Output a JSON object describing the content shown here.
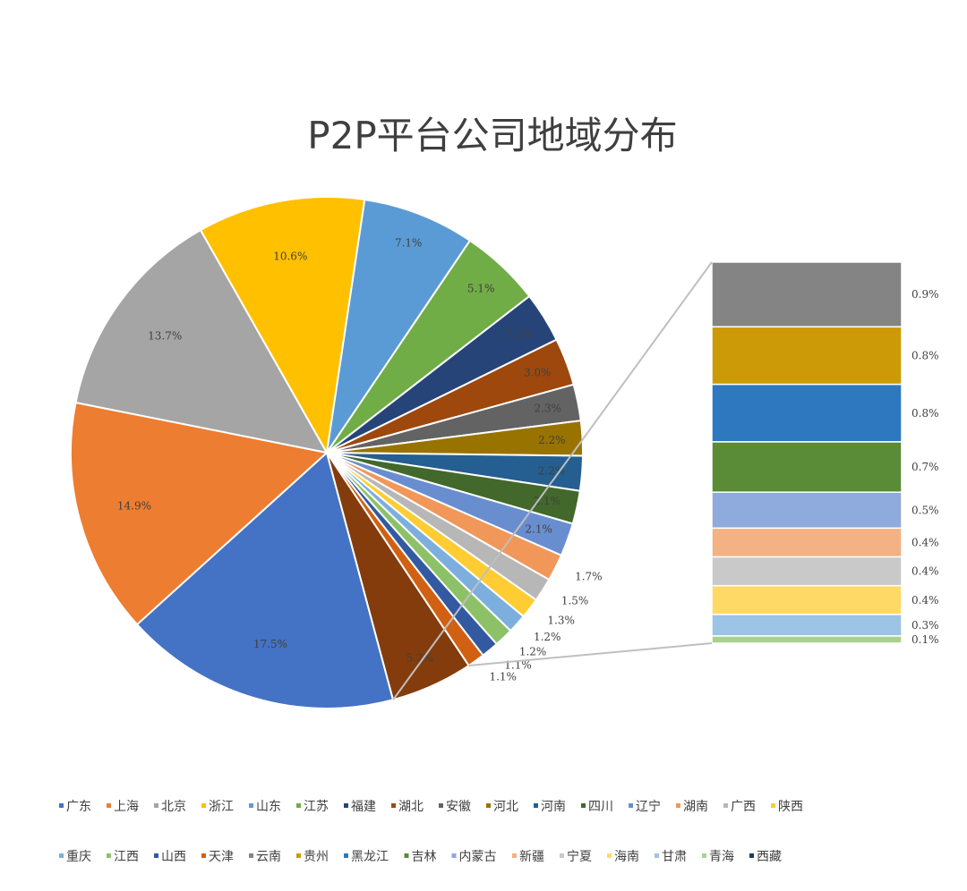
{
  "chart_data": {
    "type": "bar-of-pie",
    "title": "P2P平台公司地域分布",
    "pie_slices": [
      {
        "name": "广东",
        "value": 17.5,
        "label": "17.5%",
        "color": "#4472C4"
      },
      {
        "name": "上海",
        "value": 14.9,
        "label": "14.9%",
        "color": "#ED7D31"
      },
      {
        "name": "北京",
        "value": 13.7,
        "label": "13.7%",
        "color": "#A5A5A5"
      },
      {
        "name": "浙江",
        "value": 10.6,
        "label": "10.6%",
        "color": "#FFC000"
      },
      {
        "name": "山东",
        "value": 7.1,
        "label": "7.1%",
        "color": "#5B9BD5"
      },
      {
        "name": "江苏",
        "value": 5.1,
        "label": "5.1%",
        "color": "#70AD47"
      },
      {
        "name": "福建",
        "value": 3.2,
        "label": "3.2%",
        "color": "#264478"
      },
      {
        "name": "湖北",
        "value": 3.0,
        "label": "3.0%",
        "color": "#9E480E"
      },
      {
        "name": "安徽",
        "value": 2.3,
        "label": "2.3%",
        "color": "#636363"
      },
      {
        "name": "河北",
        "value": 2.2,
        "label": "2.2%",
        "color": "#997300"
      },
      {
        "name": "河南",
        "value": 2.2,
        "label": "2.2%",
        "color": "#255E91"
      },
      {
        "name": "四川",
        "value": 2.1,
        "label": "2.1%",
        "color": "#43682B"
      },
      {
        "name": "辽宁",
        "value": 2.1,
        "label": "2.1%",
        "color": "#698ED0"
      },
      {
        "name": "湖南",
        "value": 1.7,
        "label": "1.7%",
        "color": "#F1975A"
      },
      {
        "name": "广西",
        "value": 1.5,
        "label": "1.5%",
        "color": "#B7B7B7"
      },
      {
        "name": "陕西",
        "value": 1.3,
        "label": "1.3%",
        "color": "#FFCD33"
      },
      {
        "name": "重庆",
        "value": 1.2,
        "label": "1.2%",
        "color": "#7CAFDD"
      },
      {
        "name": "江西",
        "value": 1.2,
        "label": "1.2%",
        "color": "#8CC168"
      },
      {
        "name": "山西",
        "value": 1.1,
        "label": "1.1%",
        "color": "#335AA1"
      },
      {
        "name": "天津",
        "value": 1.1,
        "label": "1.1%",
        "color": "#D26012"
      }
    ],
    "other_slice": {
      "value": 5.2,
      "label": "5.2%",
      "color": "#843C0C"
    },
    "bar_items": [
      {
        "name": "云南",
        "value": 0.9,
        "label": "0.9%",
        "color": "#848484"
      },
      {
        "name": "贵州",
        "value": 0.8,
        "label": "0.8%",
        "color": "#CC9A06"
      },
      {
        "name": "黑龙江",
        "value": 0.8,
        "label": "0.8%",
        "color": "#2E78C0"
      },
      {
        "name": "吉林",
        "value": 0.7,
        "label": "0.7%",
        "color": "#5A8C37"
      },
      {
        "name": "内蒙古",
        "value": 0.5,
        "label": "0.5%",
        "color": "#8FAADC"
      },
      {
        "name": "新疆",
        "value": 0.4,
        "label": "0.4%",
        "color": "#F4B183"
      },
      {
        "name": "宁夏",
        "value": 0.4,
        "label": "0.4%",
        "color": "#C9C9C9"
      },
      {
        "name": "海南",
        "value": 0.4,
        "label": "0.4%",
        "color": "#FFD966"
      },
      {
        "name": "甘肃",
        "value": 0.3,
        "label": "0.3%",
        "color": "#9DC3E6"
      },
      {
        "name": "青海",
        "value": 0.1,
        "label": "0.1%",
        "color": "#A9D18E"
      }
    ],
    "legend_extra": [
      {
        "name": "西藏",
        "color": "#1F3864"
      }
    ],
    "legend_position": "bottom"
  }
}
